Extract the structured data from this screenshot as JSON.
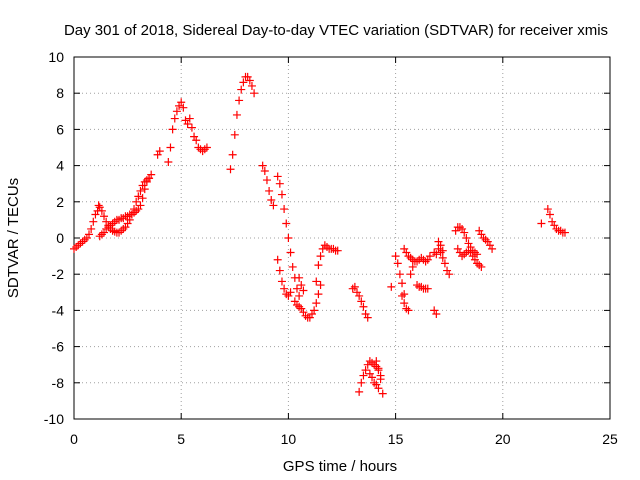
{
  "chart_data": {
    "type": "scatter",
    "title": "Day 301 of 2018, Sidereal Day-to-day VTEC variation (SDTVAR) for receiver xmis",
    "xlabel": "GPS time / hours",
    "ylabel": "SDTVAR / TECUs",
    "xlim": [
      0,
      25
    ],
    "ylim": [
      -10,
      10
    ],
    "xticks": [
      0,
      5,
      10,
      15,
      20,
      25
    ],
    "yticks": [
      -10,
      -8,
      -6,
      -4,
      -2,
      0,
      2,
      4,
      6,
      8,
      10
    ],
    "xtick_labels": [
      "0",
      "5",
      "10",
      "15",
      "20",
      "25"
    ],
    "ytick_labels": [
      "-10",
      "-8",
      "-6",
      "-4",
      "-2",
      "0",
      "2",
      "4",
      "6",
      "8",
      "10"
    ],
    "grid": true,
    "marker": "+",
    "color": "#ff0000",
    "series": [
      {
        "name": "SDTVAR",
        "x": [
          0.0,
          0.1,
          0.2,
          0.3,
          0.4,
          0.5,
          0.6,
          0.7,
          0.8,
          0.9,
          1.0,
          1.1,
          1.15,
          1.2,
          1.3,
          1.4,
          1.5,
          1.6,
          1.7,
          1.8,
          1.9,
          2.0,
          2.1,
          2.2,
          2.3,
          2.4,
          2.5,
          2.6,
          2.7,
          2.8,
          2.9,
          3.0,
          3.1,
          3.2,
          3.3,
          3.4,
          3.5,
          3.6,
          1.2,
          1.3,
          1.4,
          1.5,
          1.6,
          1.7,
          1.8,
          1.9,
          2.0,
          2.1,
          2.2,
          2.3,
          2.4,
          2.5,
          2.6,
          2.7,
          2.8,
          2.9,
          3.0,
          3.1,
          3.2,
          3.3,
          3.4,
          3.5,
          3.9,
          4.0,
          4.4,
          4.5,
          4.6,
          4.7,
          4.8,
          4.9,
          5.0,
          5.1,
          5.2,
          5.3,
          5.4,
          5.5,
          5.6,
          5.7,
          5.8,
          5.9,
          6.0,
          6.1,
          6.2,
          7.3,
          7.4,
          7.5,
          7.6,
          7.7,
          7.8,
          7.9,
          8.0,
          8.1,
          8.2,
          8.3,
          8.4,
          8.8,
          8.9,
          9.0,
          9.1,
          9.2,
          9.3,
          9.5,
          9.6,
          9.7,
          9.8,
          9.9,
          10.0,
          10.1,
          10.2,
          10.3,
          10.4,
          10.5,
          9.5,
          9.6,
          9.7,
          9.8,
          9.9,
          10.0,
          10.1,
          10.3,
          10.4,
          10.5,
          10.6,
          10.7,
          10.8,
          10.9,
          11.0,
          11.1,
          11.2,
          11.3,
          11.4,
          11.5,
          11.3,
          11.4,
          11.5,
          11.6,
          11.7,
          11.8,
          11.9,
          12.0,
          12.1,
          12.2,
          12.3,
          10.5,
          10.6,
          10.7,
          13.0,
          13.1,
          13.2,
          13.3,
          13.4,
          13.5,
          13.6,
          13.7,
          13.3,
          13.4,
          13.5,
          13.6,
          13.7,
          13.8,
          13.9,
          14.0,
          14.1,
          14.2,
          14.3,
          14.4,
          13.8,
          13.9,
          14.0,
          14.1,
          14.2,
          14.1,
          14.2,
          14.3,
          14.8,
          15.0,
          15.1,
          15.2,
          15.3,
          15.4,
          15.4,
          15.5,
          15.6,
          15.7,
          15.8,
          15.9,
          16.0,
          16.1,
          16.2,
          16.3,
          16.4,
          16.5,
          16.6,
          16.0,
          16.1,
          16.2,
          16.3,
          16.4,
          16.5,
          15.3,
          15.4,
          15.5,
          15.6,
          15.7,
          15.8,
          16.8,
          16.9,
          17.0,
          17.1,
          17.2,
          17.3,
          17.4,
          17.5,
          16.8,
          16.9,
          17.0,
          17.1,
          17.2,
          17.8,
          17.9,
          18.0,
          18.1,
          18.2,
          18.3,
          18.4,
          18.5,
          18.6,
          18.7,
          18.8,
          18.9,
          19.0,
          19.1,
          19.2,
          19.3,
          19.4,
          19.5,
          17.9,
          18.0,
          18.1,
          18.2,
          18.3,
          18.4,
          18.5,
          18.6,
          18.7,
          18.8,
          18.9,
          19.0,
          21.8,
          22.1,
          22.2,
          22.3,
          22.4,
          22.5,
          22.6,
          22.7,
          22.8,
          22.9
        ],
        "y": [
          -0.6,
          -0.5,
          -0.4,
          -0.3,
          -0.2,
          -0.1,
          0.0,
          0.2,
          0.5,
          0.9,
          1.3,
          1.5,
          1.8,
          1.7,
          1.5,
          1.2,
          0.9,
          0.7,
          0.5,
          0.4,
          0.35,
          0.3,
          0.3,
          0.4,
          0.5,
          0.6,
          0.8,
          1.0,
          1.3,
          1.6,
          2.0,
          2.3,
          2.6,
          2.9,
          3.1,
          3.2,
          3.3,
          3.5,
          0.1,
          0.2,
          0.3,
          0.5,
          0.6,
          0.7,
          0.8,
          0.9,
          1.0,
          1.0,
          1.1,
          1.1,
          1.2,
          1.2,
          1.3,
          1.3,
          1.4,
          1.5,
          1.6,
          1.8,
          2.2,
          2.7,
          3.1,
          3.3,
          4.6,
          4.8,
          4.2,
          5.0,
          6.0,
          6.6,
          7.0,
          7.3,
          7.5,
          7.2,
          6.5,
          6.3,
          6.6,
          6.1,
          5.6,
          5.4,
          5.0,
          4.9,
          4.8,
          4.9,
          5.0,
          3.8,
          4.6,
          5.7,
          6.8,
          7.6,
          8.2,
          8.6,
          8.9,
          8.9,
          8.7,
          8.4,
          8.0,
          4.0,
          3.7,
          3.2,
          2.6,
          2.1,
          1.8,
          3.4,
          3.0,
          2.4,
          1.6,
          0.8,
          0.0,
          -0.8,
          -1.6,
          -2.2,
          -2.8,
          -3.2,
          -1.2,
          -1.8,
          -2.4,
          -2.8,
          -3.1,
          -3.2,
          -3.0,
          -3.5,
          -3.7,
          -3.8,
          -3.9,
          -4.1,
          -4.3,
          -4.4,
          -4.4,
          -4.2,
          -4.0,
          -3.6,
          -3.1,
          -2.6,
          -2.4,
          -1.5,
          -1.0,
          -0.6,
          -0.4,
          -0.5,
          -0.6,
          -0.6,
          -0.6,
          -0.7,
          -0.7,
          -2.2,
          -2.6,
          -2.9,
          -2.8,
          -2.7,
          -3.0,
          -3.2,
          -3.5,
          -3.8,
          -4.2,
          -4.4,
          -8.5,
          -8.0,
          -7.6,
          -7.3,
          -7.0,
          -6.8,
          -6.9,
          -7.0,
          -7.1,
          -7.3,
          -7.8,
          -8.6,
          -7.5,
          -7.7,
          -8.0,
          -8.1,
          -8.3,
          -6.8,
          -7.2,
          -7.6,
          -2.7,
          -1.0,
          -1.4,
          -2.0,
          -2.5,
          -3.1,
          -0.6,
          -0.8,
          -1.0,
          -1.1,
          -1.2,
          -1.3,
          -1.3,
          -1.2,
          -1.1,
          -1.2,
          -1.3,
          -1.2,
          -1.0,
          -2.6,
          -2.7,
          -2.7,
          -2.8,
          -2.8,
          -2.8,
          -3.2,
          -3.6,
          -3.9,
          -4.0,
          -2.0,
          -1.6,
          -0.8,
          -0.9,
          -0.6,
          -0.8,
          -1.1,
          -1.4,
          -1.8,
          -2.0,
          -4.0,
          -4.2,
          -0.2,
          -0.4,
          -0.7,
          0.4,
          0.6,
          0.6,
          0.5,
          0.3,
          0.0,
          -0.3,
          -0.5,
          -0.7,
          -0.8,
          -0.9,
          0.4,
          0.2,
          0.0,
          -0.1,
          -0.2,
          -0.4,
          -0.6,
          -0.6,
          -0.8,
          -1.0,
          -0.9,
          -0.8,
          -0.7,
          -0.8,
          -1.0,
          -1.2,
          -1.4,
          -1.5,
          -1.6,
          0.8,
          1.6,
          1.3,
          0.9,
          0.7,
          0.5,
          0.4,
          0.4,
          0.3,
          0.3
        ]
      }
    ]
  }
}
